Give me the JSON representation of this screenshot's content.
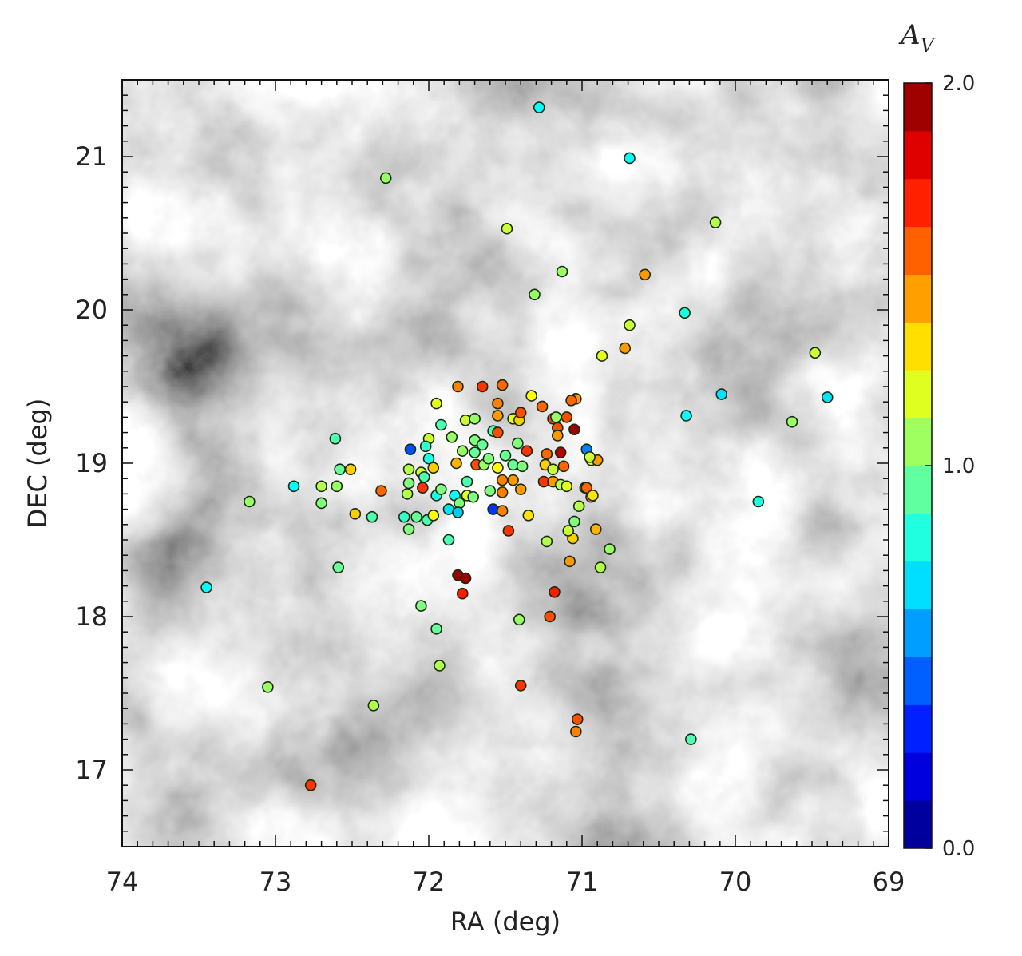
{
  "chart_data": {
    "type": "scatter",
    "title": "",
    "xlabel": "RA (deg)",
    "ylabel": "DEC (deg)",
    "xlim": [
      74,
      69
    ],
    "ylim": [
      16.5,
      21.5
    ],
    "xticks": [
      "74",
      "73",
      "72",
      "71",
      "70",
      "69"
    ],
    "yticks": [
      "17",
      "18",
      "19",
      "20",
      "21"
    ],
    "background": "grayscale extinction map",
    "colorbar": {
      "label": "A",
      "label_sub": "V",
      "range": [
        0.0,
        2.0
      ],
      "ticks": [
        "0.0",
        "1.0",
        "2.0"
      ],
      "colormap": "jet"
    },
    "points": [
      [
        71.28,
        21.32,
        0.75
      ],
      [
        70.69,
        20.99,
        0.75
      ],
      [
        72.28,
        20.86,
        1.05
      ],
      [
        71.49,
        20.53,
        1.15
      ],
      [
        70.13,
        20.57,
        1.1
      ],
      [
        71.13,
        20.25,
        1.05
      ],
      [
        70.59,
        20.23,
        1.45
      ],
      [
        71.31,
        20.1,
        1.05
      ],
      [
        70.33,
        19.98,
        0.8
      ],
      [
        70.69,
        19.9,
        1.15
      ],
      [
        70.72,
        19.75,
        1.45
      ],
      [
        70.87,
        19.7,
        1.2
      ],
      [
        69.48,
        19.72,
        1.15
      ],
      [
        70.09,
        19.45,
        0.7
      ],
      [
        69.4,
        19.43,
        0.7
      ],
      [
        70.32,
        19.31,
        0.75
      ],
      [
        69.63,
        19.27,
        1.05
      ],
      [
        69.85,
        18.75,
        0.8
      ],
      [
        70.82,
        18.44,
        1.05
      ],
      [
        70.88,
        18.32,
        1.1
      ],
      [
        70.29,
        17.2,
        0.9
      ],
      [
        71.03,
        17.33,
        1.6
      ],
      [
        71.04,
        17.25,
        1.5
      ],
      [
        71.4,
        17.55,
        1.65
      ],
      [
        71.18,
        18.16,
        1.7
      ],
      [
        71.21,
        18.0,
        1.6
      ],
      [
        71.41,
        17.98,
        1.05
      ],
      [
        72.05,
        18.07,
        1.0
      ],
      [
        71.95,
        17.92,
        0.95
      ],
      [
        71.93,
        17.68,
        1.1
      ],
      [
        71.81,
        18.27,
        1.95
      ],
      [
        71.76,
        18.25,
        1.95
      ],
      [
        71.78,
        18.15,
        1.7
      ],
      [
        71.87,
        18.5,
        0.9
      ],
      [
        72.36,
        17.42,
        1.1
      ],
      [
        73.05,
        17.54,
        1.05
      ],
      [
        72.77,
        16.9,
        1.65
      ],
      [
        73.45,
        18.19,
        0.75
      ],
      [
        72.59,
        18.32,
        0.95
      ],
      [
        73.17,
        18.75,
        1.05
      ],
      [
        72.88,
        18.85,
        0.75
      ],
      [
        72.7,
        18.85,
        1.1
      ],
      [
        72.7,
        18.74,
        1.0
      ],
      [
        72.6,
        18.85,
        1.05
      ],
      [
        72.58,
        18.96,
        0.95
      ],
      [
        72.51,
        18.96,
        1.35
      ],
      [
        72.61,
        19.16,
        0.9
      ],
      [
        72.48,
        18.67,
        1.35
      ],
      [
        72.37,
        18.65,
        0.9
      ],
      [
        72.31,
        18.82,
        1.55
      ],
      [
        71.48,
        18.56,
        1.65
      ],
      [
        71.23,
        18.49,
        1.1
      ],
      [
        71.08,
        18.36,
        1.45
      ],
      [
        71.06,
        18.51,
        1.35
      ],
      [
        71.09,
        18.56,
        1.15
      ],
      [
        71.05,
        18.62,
        1.0
      ],
      [
        71.02,
        18.72,
        1.1
      ],
      [
        70.91,
        18.57,
        1.4
      ],
      [
        70.94,
        18.78,
        1.45
      ],
      [
        70.98,
        18.84,
        1.55
      ],
      [
        70.94,
        19.02,
        1.2
      ],
      [
        70.9,
        19.02,
        1.45
      ],
      [
        70.97,
        19.09,
        0.5
      ],
      [
        71.05,
        19.22,
        1.95
      ],
      [
        71.14,
        19.07,
        1.9
      ],
      [
        71.1,
        19.3,
        1.6
      ],
      [
        71.04,
        19.42,
        1.45
      ],
      [
        71.07,
        19.41,
        1.55
      ],
      [
        72.12,
        19.09,
        0.4
      ],
      [
        71.58,
        18.7,
        0.35
      ],
      [
        71.81,
        19.5,
        1.5
      ],
      [
        71.65,
        19.5,
        1.65
      ],
      [
        71.52,
        19.51,
        1.55
      ],
      [
        71.95,
        19.39,
        1.2
      ],
      [
        71.55,
        19.39,
        1.5
      ],
      [
        71.33,
        19.44,
        1.25
      ],
      [
        71.26,
        19.37,
        1.55
      ],
      [
        71.76,
        19.28,
        1.15
      ],
      [
        71.7,
        19.29,
        1.05
      ],
      [
        71.55,
        19.31,
        1.45
      ],
      [
        71.45,
        19.29,
        1.2
      ],
      [
        71.41,
        19.28,
        1.35
      ],
      [
        71.4,
        19.33,
        1.6
      ],
      [
        71.19,
        19.29,
        1.6
      ],
      [
        71.17,
        19.3,
        1.05
      ],
      [
        71.16,
        19.23,
        1.6
      ],
      [
        71.16,
        19.18,
        1.45
      ],
      [
        71.92,
        19.25,
        0.9
      ],
      [
        72.0,
        19.16,
        1.15
      ],
      [
        72.02,
        19.11,
        0.85
      ],
      [
        71.85,
        19.17,
        1.05
      ],
      [
        71.7,
        19.15,
        1.0
      ],
      [
        71.65,
        19.12,
        0.95
      ],
      [
        71.58,
        19.21,
        0.9
      ],
      [
        71.55,
        19.2,
        1.6
      ],
      [
        71.42,
        19.13,
        1.0
      ],
      [
        71.36,
        19.08,
        1.65
      ],
      [
        71.78,
        19.08,
        1.05
      ],
      [
        71.7,
        19.07,
        0.95
      ],
      [
        72.0,
        19.03,
        0.8
      ],
      [
        71.82,
        19.0,
        1.4
      ],
      [
        71.69,
        18.99,
        1.6
      ],
      [
        71.64,
        18.99,
        1.05
      ],
      [
        71.61,
        19.03,
        1.0
      ],
      [
        71.55,
        18.97,
        1.25
      ],
      [
        71.5,
        19.05,
        0.95
      ],
      [
        71.45,
        18.99,
        0.95
      ],
      [
        71.39,
        18.98,
        1.0
      ],
      [
        71.23,
        19.06,
        1.55
      ],
      [
        71.24,
        18.99,
        1.35
      ],
      [
        71.19,
        18.96,
        1.15
      ],
      [
        71.12,
        18.98,
        1.55
      ],
      [
        70.95,
        19.04,
        1.15
      ],
      [
        72.13,
        18.96,
        1.1
      ],
      [
        72.05,
        18.94,
        1.15
      ],
      [
        72.03,
        18.91,
        0.9
      ],
      [
        71.97,
        18.97,
        1.35
      ],
      [
        72.13,
        18.87,
        1.0
      ],
      [
        72.14,
        18.8,
        1.1
      ],
      [
        72.04,
        18.84,
        1.65
      ],
      [
        71.95,
        18.79,
        0.8
      ],
      [
        71.92,
        18.83,
        1.0
      ],
      [
        71.83,
        18.79,
        0.75
      ],
      [
        71.8,
        18.74,
        1.0
      ],
      [
        71.75,
        18.79,
        1.2
      ],
      [
        71.71,
        18.78,
        1.0
      ],
      [
        71.75,
        18.88,
        0.9
      ],
      [
        71.6,
        18.82,
        1.0
      ],
      [
        71.52,
        18.89,
        1.5
      ],
      [
        71.45,
        18.89,
        1.45
      ],
      [
        71.52,
        18.81,
        1.5
      ],
      [
        71.4,
        18.83,
        1.45
      ],
      [
        71.25,
        18.88,
        1.65
      ],
      [
        71.19,
        18.88,
        1.45
      ],
      [
        71.14,
        18.86,
        1.1
      ],
      [
        71.1,
        18.85,
        1.2
      ],
      [
        70.97,
        18.84,
        1.55
      ],
      [
        70.93,
        18.79,
        1.3
      ],
      [
        71.87,
        18.7,
        0.7
      ],
      [
        71.81,
        18.68,
        0.65
      ],
      [
        71.52,
        18.69,
        1.5
      ],
      [
        71.35,
        18.66,
        1.3
      ],
      [
        72.16,
        18.65,
        0.85
      ],
      [
        72.08,
        18.65,
        0.95
      ],
      [
        72.01,
        18.63,
        0.9
      ],
      [
        71.97,
        18.66,
        1.25
      ],
      [
        72.13,
        18.57,
        1.0
      ]
    ]
  }
}
